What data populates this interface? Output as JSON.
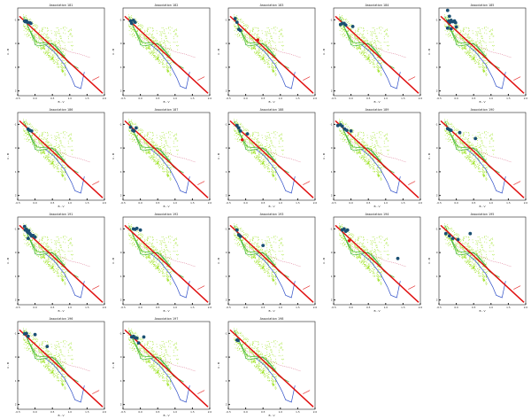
{
  "figure": {
    "xlabel": "B - V",
    "ylabel": "U - B",
    "xticks": [
      "-0.5",
      "0.0",
      "0.5",
      "1.0",
      "1.5",
      "2.0"
    ],
    "yticks": [
      "-1",
      "0",
      "1",
      "2"
    ]
  },
  "colors": {
    "background_cloud": "#9be21d",
    "sequence_green": "#3cb43c",
    "reddening_line": "#e01010",
    "blue_track": "#3050c8",
    "pink_track": "#d86080",
    "association_stars": "#1a4f73",
    "highlight_star": "#e01010",
    "axes": "#222222"
  },
  "chart_data": [
    {
      "type": "scatter",
      "title": "Association 181",
      "xlim": [
        -0.5,
        2.0
      ],
      "ylim": [
        -1.5,
        2.2
      ],
      "xlabel": "B - V",
      "ylabel": "U - B",
      "series": [
        {
          "values": [
            [
              -0.3,
              -0.95
            ],
            [
              -0.28,
              -0.92
            ],
            [
              -0.25,
              -0.95
            ],
            [
              -0.22,
              -0.9
            ],
            [
              -0.15,
              -0.88
            ],
            [
              -0.12,
              -0.85
            ]
          ]
        }
      ]
    },
    {
      "type": "scatter",
      "title": "Association 182",
      "xlim": [
        -0.5,
        2.0
      ],
      "ylim": [
        -1.5,
        2.2
      ],
      "xlabel": "B - V",
      "ylabel": "U - B",
      "series": [
        {
          "values": [
            [
              -0.28,
              -0.95
            ],
            [
              -0.25,
              -0.85
            ],
            [
              -0.2,
              -0.98
            ],
            [
              -0.15,
              -0.9
            ]
          ]
        }
      ]
    },
    {
      "type": "scatter",
      "title": "Association 183",
      "xlim": [
        -0.5,
        2.0
      ],
      "ylim": [
        -1.5,
        2.2
      ],
      "xlabel": "B - V",
      "ylabel": "U - B",
      "series": [
        {
          "values": [
            [
              -0.3,
              -1.05
            ],
            [
              -0.25,
              -0.9
            ],
            [
              -0.2,
              -0.6
            ],
            [
              -0.15,
              -0.55
            ]
          ]
        },
        {
          "values": [
            [
              0.35,
              -0.15
            ]
          ]
        }
      ]
    },
    {
      "type": "scatter",
      "title": "Association 184",
      "xlim": [
        -0.5,
        2.0
      ],
      "ylim": [
        -1.5,
        2.2
      ],
      "xlabel": "B - V",
      "ylabel": "U - B",
      "series": [
        {
          "values": [
            [
              -0.3,
              -0.8
            ],
            [
              -0.25,
              -0.85
            ],
            [
              -0.2,
              -0.85
            ],
            [
              -0.15,
              -0.78
            ],
            [
              0.05,
              -0.72
            ]
          ]
        }
      ]
    },
    {
      "type": "scatter",
      "title": "Association 185",
      "xlim": [
        -0.5,
        2.0
      ],
      "ylim": [
        -1.5,
        2.2
      ],
      "xlabel": "B - V",
      "ylabel": "U - B",
      "series": [
        {
          "values": [
            [
              -0.25,
              -1.4
            ],
            [
              -0.2,
              -1.15
            ],
            [
              -0.22,
              -0.95
            ],
            [
              -0.18,
              -0.9
            ],
            [
              -0.15,
              -0.98
            ],
            [
              -0.1,
              -0.92
            ],
            [
              -0.05,
              -0.95
            ],
            [
              -0.02,
              -0.88
            ],
            [
              0.0,
              -0.7
            ],
            [
              -0.25,
              -0.65
            ],
            [
              -0.15,
              -0.62
            ]
          ]
        }
      ]
    },
    {
      "type": "scatter",
      "title": "Association 186",
      "xlim": [
        -0.5,
        2.0
      ],
      "ylim": [
        -1.5,
        2.2
      ],
      "xlabel": "B - V",
      "ylabel": "U - B",
      "series": [
        {
          "values": [
            [
              -0.2,
              -0.8
            ],
            [
              -0.15,
              -0.75
            ],
            [
              -0.1,
              -0.72
            ]
          ]
        }
      ]
    },
    {
      "type": "scatter",
      "title": "Association 187",
      "xlim": [
        -0.5,
        2.0
      ],
      "ylim": [
        -1.5,
        2.2
      ],
      "xlabel": "B - V",
      "ylabel": "U - B",
      "series": [
        {
          "values": [
            [
              -0.28,
              -0.88
            ],
            [
              -0.22,
              -0.75
            ],
            [
              -0.18,
              -0.72
            ],
            [
              -0.12,
              -0.85
            ]
          ]
        }
      ]
    },
    {
      "type": "scatter",
      "title": "Association 188",
      "xlim": [
        -0.5,
        2.0
      ],
      "ylim": [
        -1.5,
        2.2
      ],
      "xlabel": "B - V",
      "ylabel": "U - B",
      "series": [
        {
          "values": [
            [
              -0.25,
              -0.95
            ],
            [
              -0.2,
              -0.85
            ],
            [
              -0.15,
              -0.72
            ],
            [
              0.05,
              -0.6
            ]
          ]
        },
        {
          "values": [
            [
              -0.1,
              -0.35
            ]
          ]
        }
      ]
    },
    {
      "type": "scatter",
      "title": "Association 189",
      "xlim": [
        -0.5,
        2.0
      ],
      "ylim": [
        -1.5,
        2.2
      ],
      "xlabel": "B - V",
      "ylabel": "U - B",
      "series": [
        {
          "values": [
            [
              -0.38,
              -0.95
            ],
            [
              -0.3,
              -0.98
            ],
            [
              -0.25,
              -0.92
            ],
            [
              -0.18,
              -0.8
            ],
            [
              -0.12,
              -0.75
            ],
            [
              0.0,
              -0.72
            ]
          ]
        }
      ]
    },
    {
      "type": "scatter",
      "title": "Association 190",
      "xlim": [
        -0.5,
        2.0
      ],
      "ylim": [
        -1.5,
        2.2
      ],
      "xlabel": "B - V",
      "ylabel": "U - B",
      "series": [
        {
          "values": [
            [
              -0.25,
              -0.82
            ],
            [
              -0.2,
              -0.78
            ],
            [
              -0.15,
              -0.75
            ],
            [
              0.1,
              -0.65
            ],
            [
              0.55,
              -0.4
            ]
          ]
        }
      ]
    },
    {
      "type": "scatter",
      "title": "Association 191",
      "xlim": [
        -0.5,
        2.0
      ],
      "ylim": [
        -1.5,
        2.2
      ],
      "xlabel": "B - V",
      "ylabel": "U - B",
      "series": [
        {
          "values": [
            [
              -0.3,
              -1.1
            ],
            [
              -0.28,
              -0.95
            ],
            [
              -0.25,
              -0.98
            ],
            [
              -0.22,
              -0.88
            ],
            [
              -0.2,
              -0.85
            ],
            [
              -0.18,
              -0.92
            ],
            [
              -0.15,
              -0.8
            ],
            [
              -0.12,
              -0.75
            ],
            [
              -0.1,
              -0.7
            ],
            [
              -0.05,
              -0.72
            ],
            [
              0.0,
              -0.65
            ],
            [
              -0.2,
              -0.6
            ]
          ]
        }
      ]
    },
    {
      "type": "scatter",
      "title": "Association 192",
      "xlim": [
        -0.5,
        2.0
      ],
      "ylim": [
        -1.5,
        2.2
      ],
      "xlabel": "B - V",
      "ylabel": "U - B",
      "series": [
        {
          "values": [
            [
              -0.2,
              -1.0
            ],
            [
              -0.15,
              -0.98
            ],
            [
              -0.1,
              -1.02
            ],
            [
              0.0,
              -0.95
            ]
          ]
        }
      ]
    },
    {
      "type": "scatter",
      "title": "Association 193",
      "xlim": [
        -0.5,
        2.0
      ],
      "ylim": [
        -1.5,
        2.2
      ],
      "xlabel": "B - V",
      "ylabel": "U - B",
      "series": [
        {
          "values": [
            [
              -0.25,
              -0.95
            ],
            [
              -0.2,
              -0.75
            ],
            [
              -0.15,
              -0.68
            ],
            [
              0.5,
              -0.3
            ]
          ]
        }
      ]
    },
    {
      "type": "scatter",
      "title": "Association 194",
      "xlim": [
        -0.5,
        2.0
      ],
      "ylim": [
        -1.5,
        2.2
      ],
      "xlabel": "B - V",
      "ylabel": "U - B",
      "series": [
        {
          "values": [
            [
              -0.25,
              -0.95
            ],
            [
              -0.2,
              -1.0
            ],
            [
              -0.15,
              -0.9
            ],
            [
              -0.1,
              -0.95
            ],
            [
              1.35,
              0.25
            ]
          ]
        },
        {
          "values": [
            [
              -0.05,
              -0.5
            ]
          ]
        }
      ]
    },
    {
      "type": "scatter",
      "title": "Association 195",
      "xlim": [
        -0.5,
        2.0
      ],
      "ylim": [
        -1.5,
        2.2
      ],
      "xlabel": "B - V",
      "ylabel": "U - B",
      "series": [
        {
          "values": [
            [
              -0.3,
              -0.8
            ],
            [
              -0.2,
              -0.7
            ],
            [
              -0.1,
              -0.6
            ],
            [
              0.05,
              -0.55
            ],
            [
              0.4,
              -0.8
            ]
          ]
        }
      ]
    },
    {
      "type": "scatter",
      "title": "Association 196",
      "xlim": [
        -0.5,
        2.0
      ],
      "ylim": [
        -1.5,
        2.2
      ],
      "xlabel": "B - V",
      "ylabel": "U - B",
      "series": [
        {
          "values": [
            [
              -0.3,
              -0.98
            ],
            [
              -0.25,
              -1.0
            ],
            [
              -0.2,
              -0.88
            ],
            [
              0.0,
              -0.95
            ],
            [
              0.35,
              -0.45
            ]
          ]
        }
      ]
    },
    {
      "type": "scatter",
      "title": "Association 197",
      "xlim": [
        -0.5,
        2.0
      ],
      "ylim": [
        -1.5,
        2.2
      ],
      "xlabel": "B - V",
      "ylabel": "U - B",
      "series": [
        {
          "values": [
            [
              -0.25,
              -0.85
            ],
            [
              -0.2,
              -0.88
            ],
            [
              -0.15,
              -0.82
            ],
            [
              -0.1,
              -0.8
            ],
            [
              0.1,
              -0.85
            ],
            [
              -0.05,
              -0.6
            ]
          ]
        }
      ]
    },
    {
      "type": "scatter",
      "title": "Association 198",
      "xlim": [
        -0.5,
        2.0
      ],
      "ylim": [
        -1.5,
        2.2
      ],
      "xlabel": "B - V",
      "ylabel": "U - B",
      "series": [
        {
          "values": [
            [
              -0.25,
              -0.72
            ],
            [
              -0.22,
              -0.7
            ]
          ]
        }
      ]
    }
  ]
}
